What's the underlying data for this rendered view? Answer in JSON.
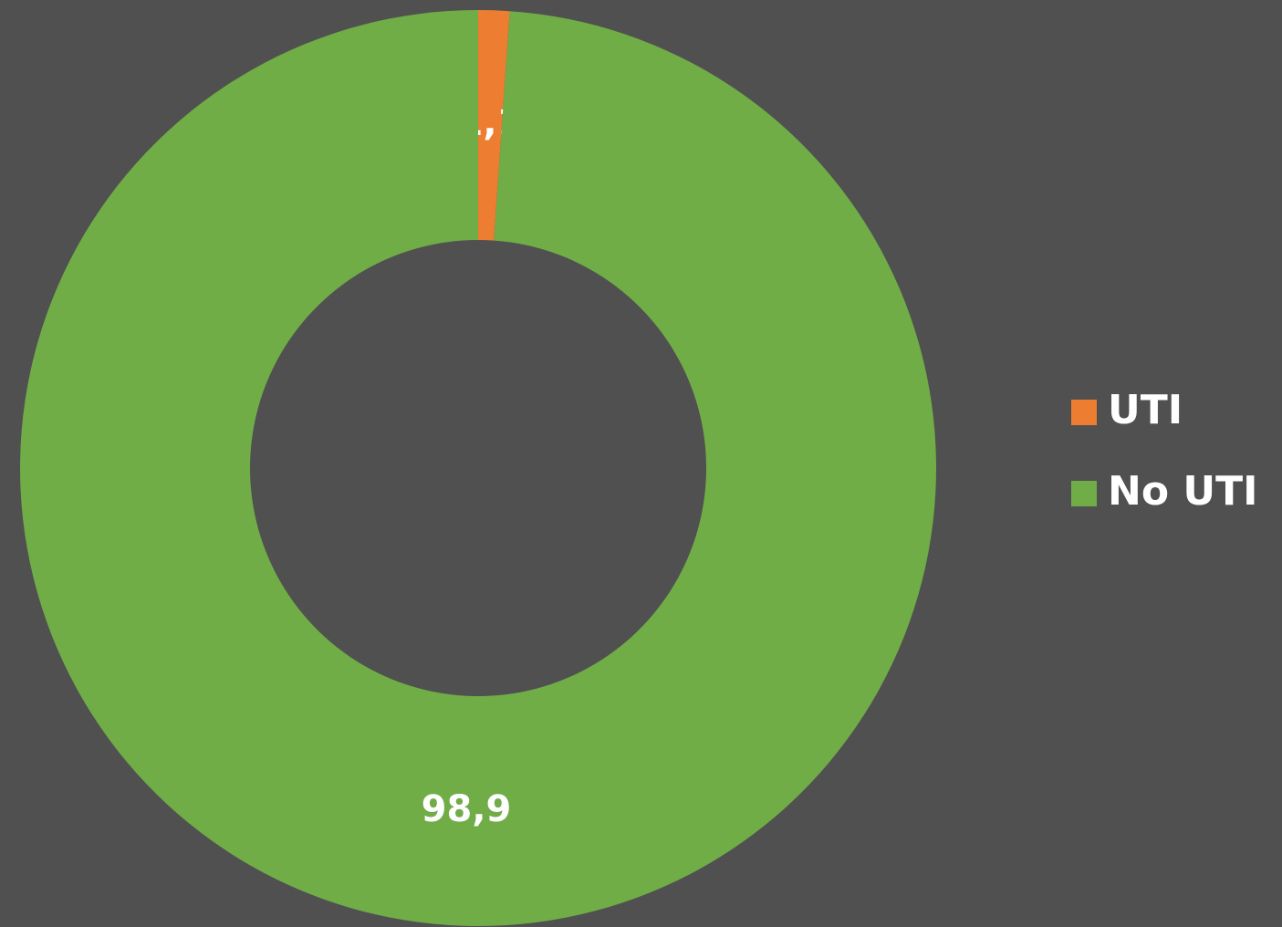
{
  "chart_data": {
    "type": "donut",
    "categories": [
      "UTI",
      "No UTI"
    ],
    "values": [
      1.1,
      98.9
    ],
    "value_labels": [
      "1,1",
      "98,9"
    ],
    "colors": [
      "#ed7d31",
      "#70ad47"
    ],
    "legend": "right"
  }
}
